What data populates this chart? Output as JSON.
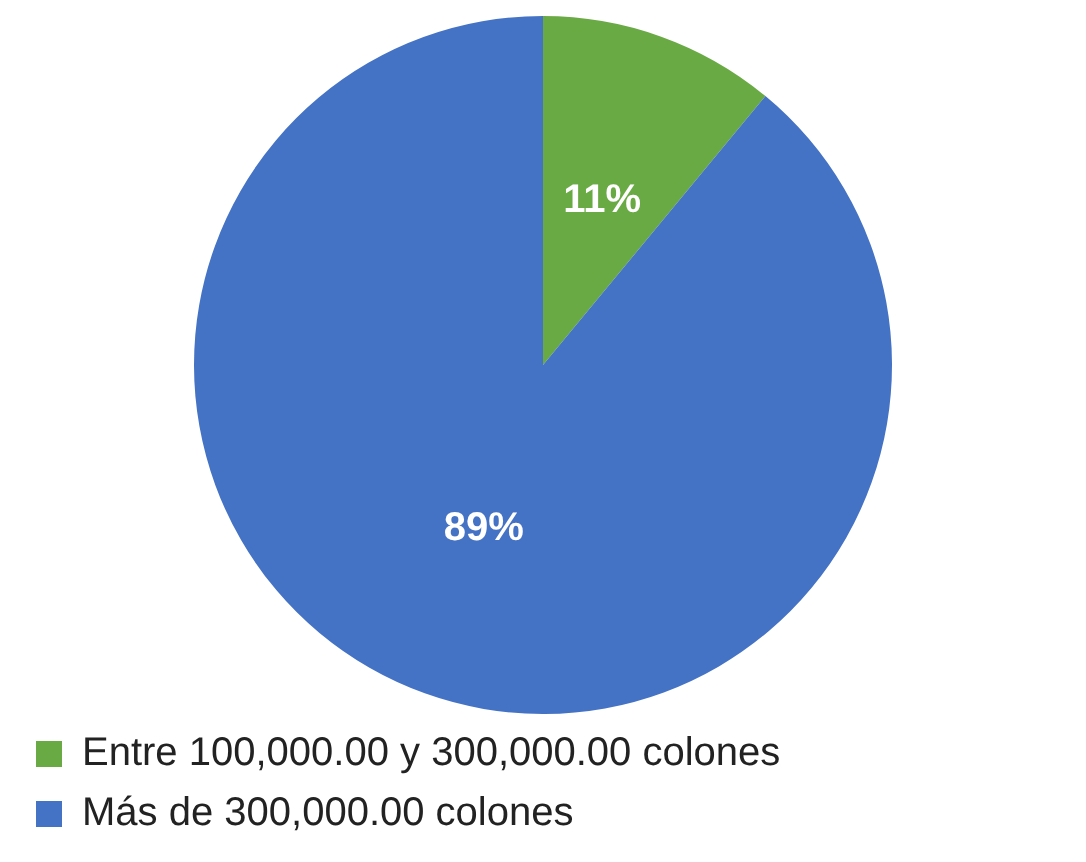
{
  "chart_data": {
    "type": "pie",
    "categories": [
      "Entre 100,000.00 y 300,000.00 colones",
      "Más de 300,000.00 colones"
    ],
    "values": [
      11,
      89
    ],
    "colors": [
      "#6aaa45",
      "#4472c4"
    ],
    "value_labels": [
      "11%",
      "89%"
    ],
    "legend": "bottom"
  }
}
